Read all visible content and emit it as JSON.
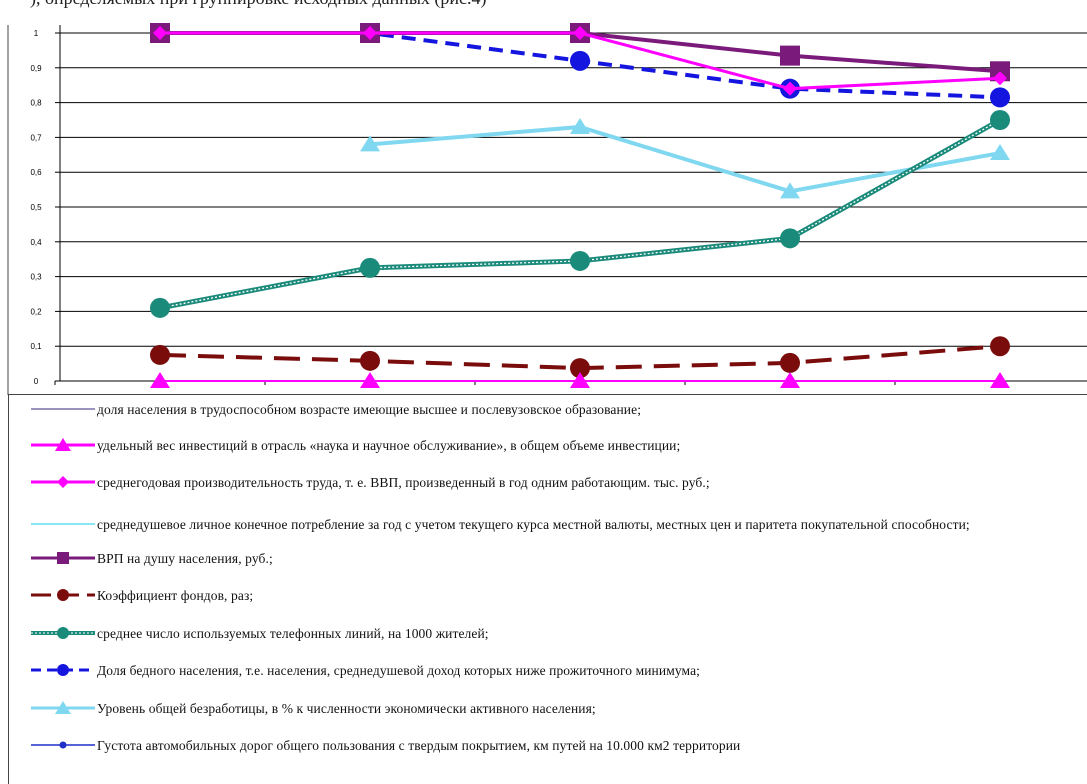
{
  "header_fragment": "), определяемых при группировке исходных данных (рис.4)",
  "chart_data": {
    "type": "line",
    "yticks": [
      "0",
      "0,1",
      "0,2",
      "0,3",
      "0,4",
      "0,5",
      "0,6",
      "0,7",
      "0,8",
      "0,9",
      "1"
    ],
    "ylim": [
      0,
      1
    ],
    "x": [
      1,
      2,
      3,
      4,
      5
    ],
    "grid": true,
    "legend_position": "bottom",
    "series": [
      {
        "name": "доля населения  в трудоспособном  возрасте имеющие высшее и послевузовское образование;",
        "color": "#7b6fa8",
        "marker": "none",
        "dash": "solid",
        "values": [
          null,
          null,
          null,
          null,
          null
        ]
      },
      {
        "name": "удельный вес инвестиций  в отрасль «наука и научное обслуживание»,  в общем объеме инвестиции;",
        "color": "#ff00ff",
        "marker": "triangle",
        "dash": "solid",
        "values": [
          0,
          0,
          0,
          0,
          0
        ]
      },
      {
        "name": "среднегодовая производительность  труда, т. е. ВВП, произведенный  в год одним работающим.  тыс. руб.;",
        "color": "#ff00ff",
        "marker": "diamond",
        "dash": "solid",
        "values": [
          1,
          1,
          1,
          0.84,
          0.87
        ]
      },
      {
        "name": "среднедушевое личное конечное потребление  за год с учетом текущего курса местной валюты, местных цен и паритета покупательной способности;",
        "color": "#5fe0f0",
        "marker": "none",
        "dash": "solid",
        "values": [
          null,
          null,
          null,
          null,
          null
        ]
      },
      {
        "name": "ВРП на душу населения,  руб.;",
        "color": "#7a1a7a",
        "marker": "square",
        "dash": "solid",
        "values": [
          1,
          1,
          1,
          0.935,
          0.89
        ]
      },
      {
        "name": "Коэффициент  фондов, раз;",
        "color": "#7a0c0c",
        "marker": "circle",
        "dash": "longdash",
        "values": [
          0.075,
          0.058,
          0.037,
          0.052,
          0.1
        ]
      },
      {
        "name": "среднее число используемых телефонных  линий,  на 1000 жителей;",
        "color": "#1a8a7a",
        "marker": "circle",
        "dash": "dotted",
        "values": [
          0.21,
          0.325,
          0.345,
          0.41,
          0.75
        ]
      },
      {
        "name": "Доля бедного населения,  т.е. населения,  среднедушевой  доход которых ниже прожиточного  минимума;",
        "color": "#1515e0",
        "marker": "circle",
        "dash": "dash",
        "values": [
          1,
          1,
          0.92,
          0.84,
          0.815
        ]
      },
      {
        "name": "Уровень общей безработицы,  в % к численности  экономически активного населения;",
        "color": "#7fd8f0",
        "marker": "triangle",
        "dash": "solid",
        "values": [
          null,
          0.68,
          0.73,
          0.545,
          0.655
        ]
      },
      {
        "name": "Густота автомобильных дорог общего пользования  с твердым покрытием,  км путей на 10.000 км2 территории",
        "color": "#1f2fc8",
        "marker": "smallcircle",
        "dash": "solid",
        "values": [
          null,
          null,
          null,
          null,
          null
        ]
      }
    ]
  }
}
